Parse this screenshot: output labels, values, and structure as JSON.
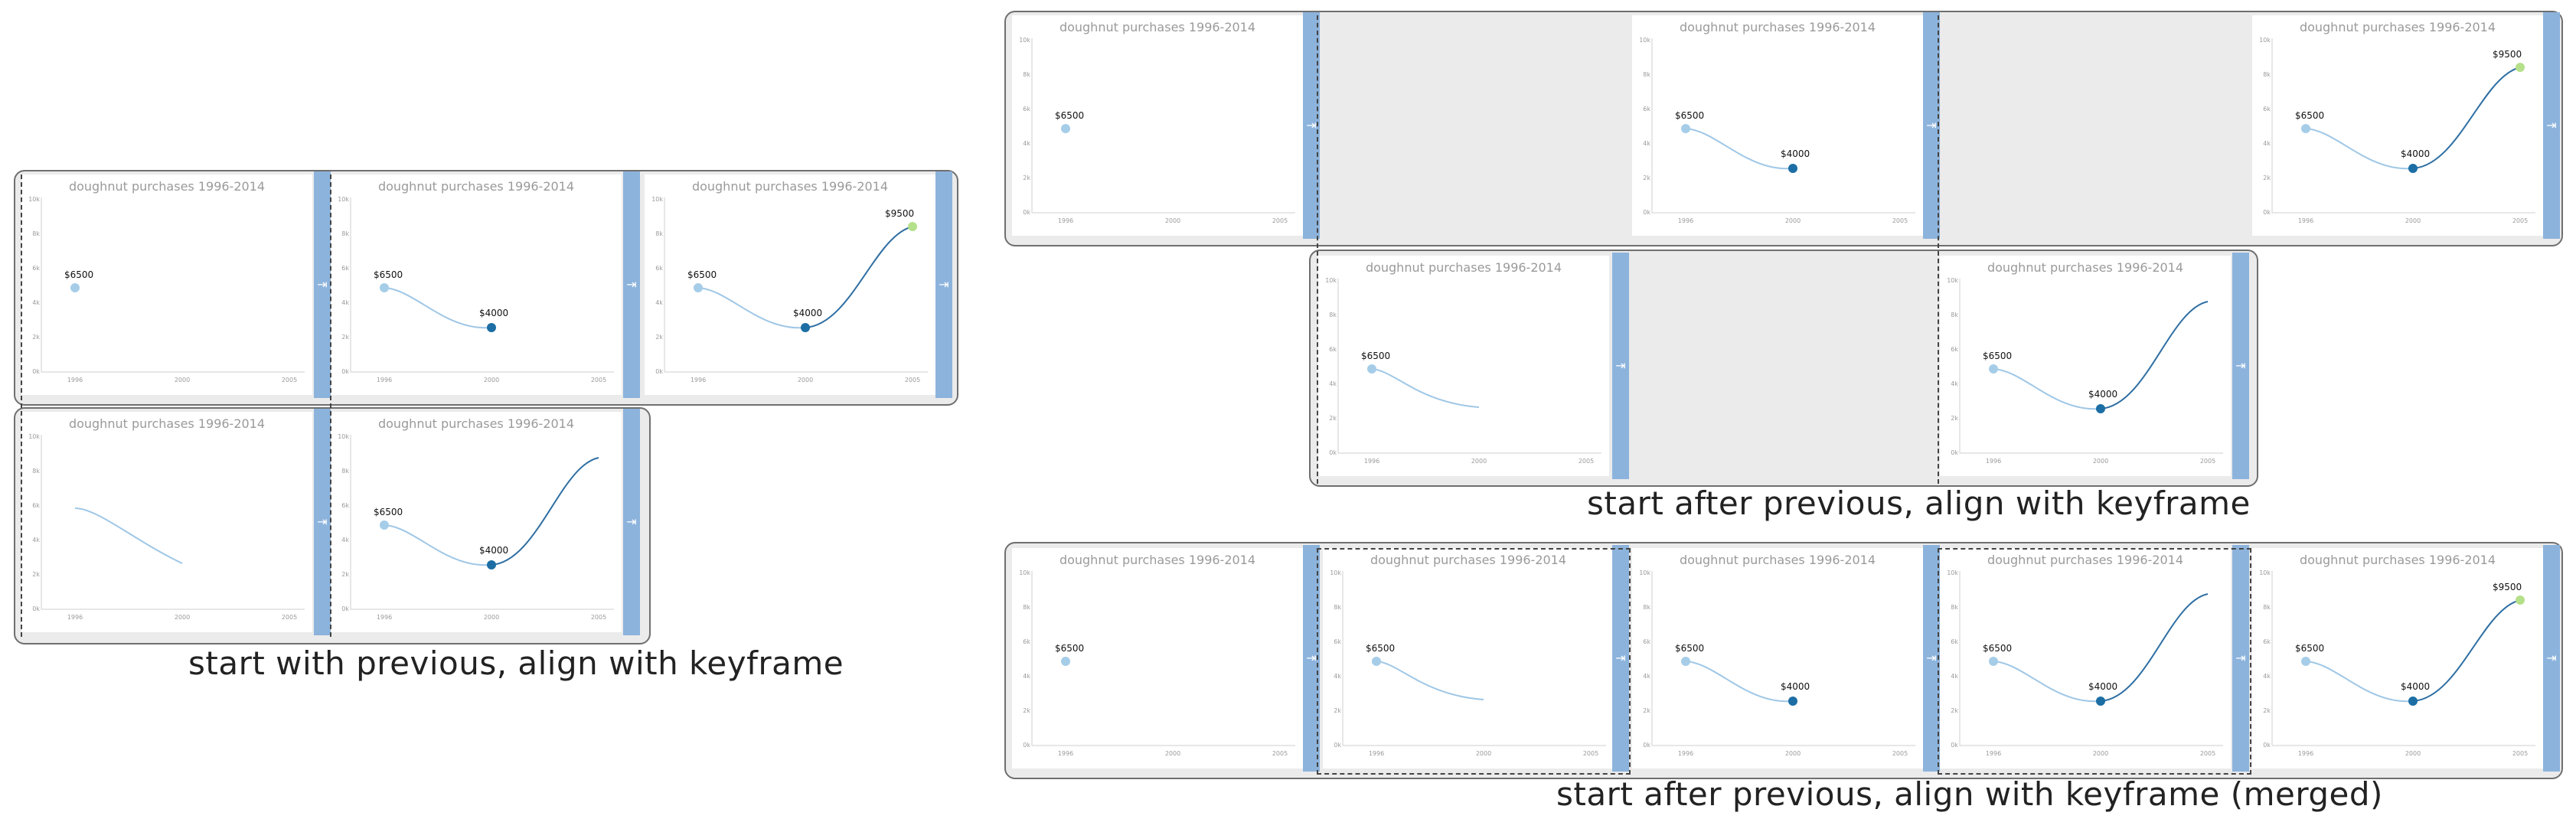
{
  "chart_title": "doughnut purchases 1996-2014",
  "y_ticks": [
    "10k",
    "8k",
    "6k",
    "4k",
    "2k",
    "0k"
  ],
  "x_ticks": [
    "1996",
    "2000",
    "2005"
  ],
  "value_labels": {
    "a": "$6500",
    "b": "$4000",
    "c": "$9500"
  },
  "icons": {
    "bar_arrow": "arrow-to-right-icon"
  },
  "colors": {
    "light_point": "#a6cde8",
    "dark_point": "#1c6ea4",
    "end_point": "#b5e08a",
    "curve_light": "#9fc7e6",
    "curve_dark": "#2f6fa3",
    "bar": "#8cb3dc"
  },
  "captions": {
    "left": "start with previous, align with keyframe",
    "right_top": "start after previous, align with keyframe",
    "right_bottom": "start after previous, align with keyframe (merged)"
  }
}
